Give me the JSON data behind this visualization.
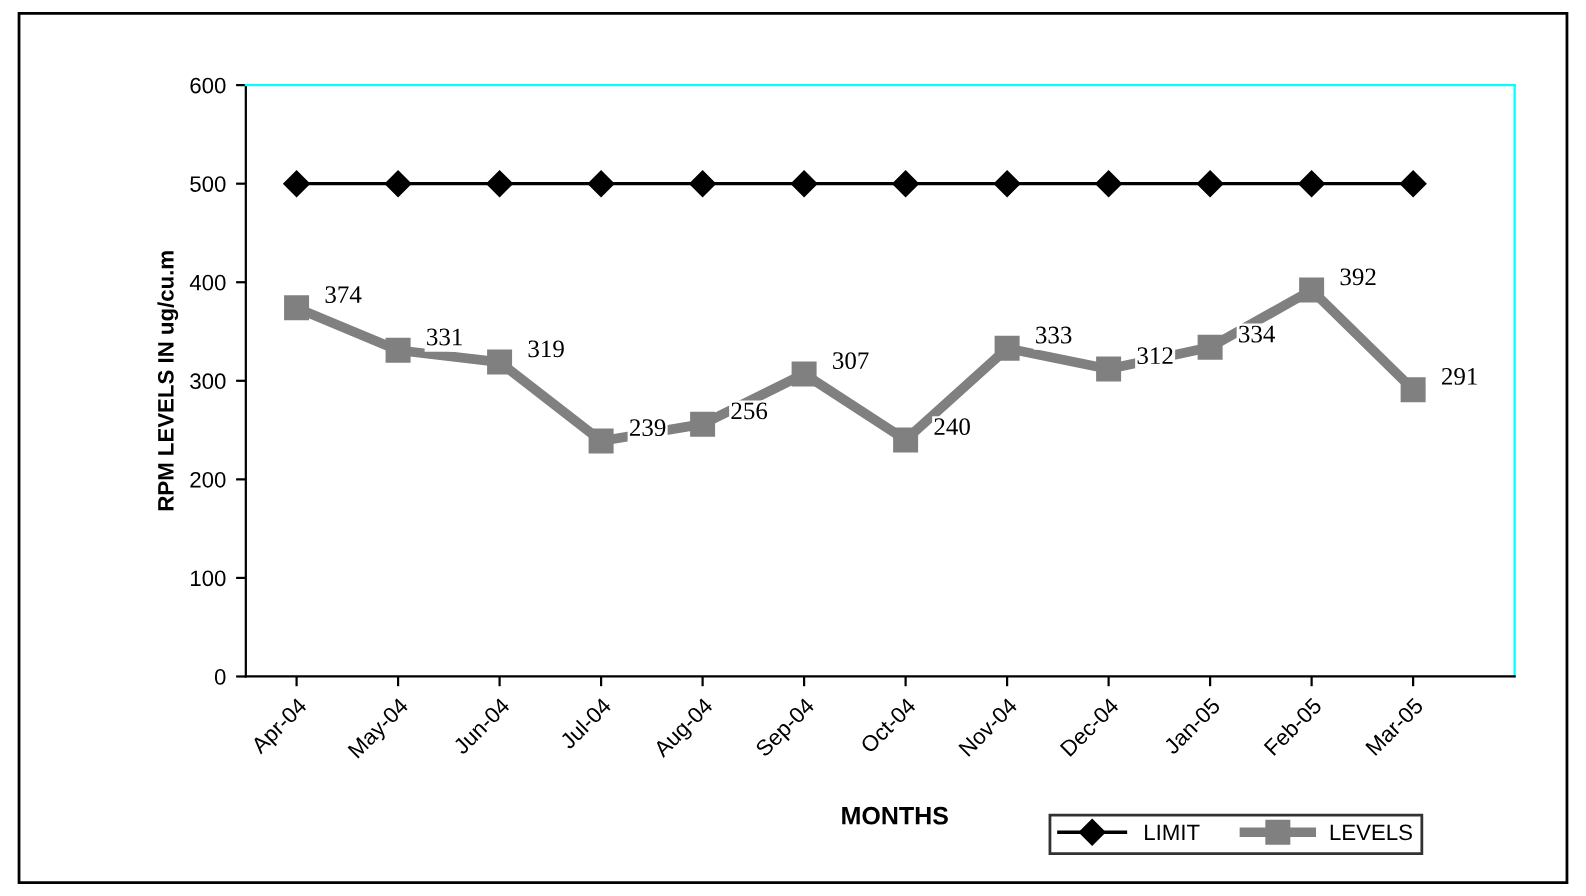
{
  "chart_data": {
    "type": "line",
    "xlabel": "MONTHS",
    "ylabel": "RPM LEVELS IN ug/cu.m",
    "categories": [
      "Apr-04",
      "May-04",
      "Jun-04",
      "Jul-04",
      "Aug-04",
      "Sep-04",
      "Oct-04",
      "Nov-04",
      "Dec-04",
      "Jan-05",
      "Feb-05",
      "Mar-05"
    ],
    "series": [
      {
        "name": "LIMIT",
        "color": "#000000",
        "marker": "diamond",
        "values": [
          500,
          500,
          500,
          500,
          500,
          500,
          500,
          500,
          500,
          500,
          500,
          500
        ]
      },
      {
        "name": "LEVELS",
        "color": "#808080",
        "marker": "square",
        "values": [
          374,
          331,
          319,
          239,
          256,
          307,
          240,
          333,
          312,
          334,
          392,
          291
        ],
        "value_labels": [
          "374",
          "331",
          "319",
          "239",
          "256",
          "307",
          "240",
          "333",
          "312",
          "334",
          "392",
          "291"
        ]
      }
    ],
    "ylim": [
      0,
      600
    ],
    "yticks": [
      0,
      100,
      200,
      300,
      400,
      500,
      600
    ],
    "grid": false,
    "legend": "bottom right"
  }
}
